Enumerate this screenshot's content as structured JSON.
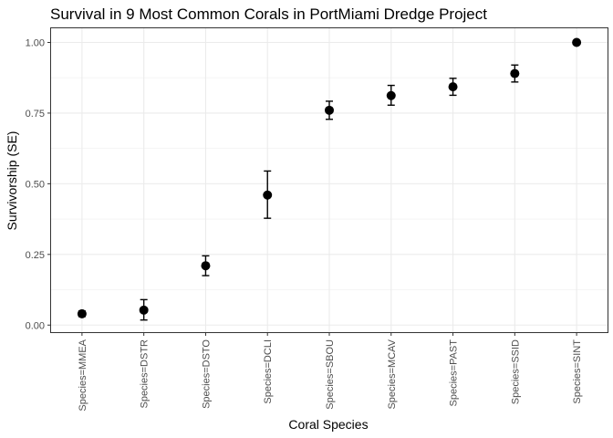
{
  "chart_data": {
    "type": "scatter",
    "title": "Survival in 9 Most Common Corals in PortMiami Dredge Project",
    "xlabel": "Coral Species",
    "ylabel": "Survivorship (SE)",
    "categories": [
      "Species=MMEA",
      "Species=DSTR",
      "Species=DSTO",
      "Species=DCLI",
      "Species=SBOU",
      "Species=MCAV",
      "Species=PAST",
      "Species=SSID",
      "Species=SINT"
    ],
    "values": [
      0.04,
      0.053,
      0.21,
      0.46,
      0.76,
      0.812,
      0.843,
      0.89,
      1.0
    ],
    "error_lower": [
      0.03,
      0.018,
      0.175,
      0.378,
      0.728,
      0.778,
      0.813,
      0.86,
      1.0
    ],
    "error_upper": [
      0.05,
      0.09,
      0.245,
      0.545,
      0.792,
      0.848,
      0.873,
      0.92,
      1.0
    ],
    "ylim": [
      -0.025,
      1.05
    ],
    "yticks": [
      0.0,
      0.25,
      0.5,
      0.75,
      1.0
    ],
    "ytick_labels": [
      "0.00",
      "0.25",
      "0.50",
      "0.75",
      "1.00"
    ],
    "grid": true,
    "colors": {
      "points": "#000000",
      "errorbars": "#000000",
      "grid_major": "#ebebeb",
      "grid_minor": "#f5f5f5",
      "panel_border": "#333333",
      "tick_text": "#4d4d4d"
    }
  }
}
